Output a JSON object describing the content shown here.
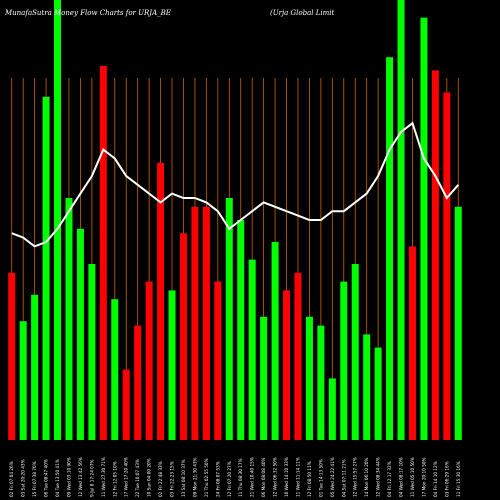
{
  "chart_data": {
    "type": "bar",
    "title_left": "MunafaSutra  Money Flow  Charts for URJA_BE",
    "title_right": "(Urja  Global Limit",
    "xlabel": "",
    "ylabel": "",
    "grid": true,
    "colors": {
      "background": "#000000",
      "grid": "#cc6600",
      "up": "#00ff00",
      "down": "#ff0000",
      "line": "#ffffff"
    },
    "categories": [
      "02 Fri 07:04 26%",
      "03 Sat 20:20 43%",
      "15 Fri 07:38 70%",
      "06 Tue 08:47 40%",
      "04 Tue 13:50 41%",
      "09 Wed 03:10 90%",
      "12 Wed 13:42 56%",
      "9-Jul 8 17:24 07%",
      "11 Wed 27:30 71%",
      "12 Fri 12:05 10%",
      "17 Wed 17:20 40%",
      "22 Tue 10:07 43%",
      "10 Sun 04:00 20%",
      "02 Fri 22:48 33%",
      "03 Fri 22:23 15%",
      "13 Sat 08:10 37%",
      "09 Mon 21:30 43%",
      "21 Thu 02:55 50%",
      "24 Fri 08:07 53%",
      "12 Fri 07:20 27%",
      "11 Thu 08:30 17%",
      "21 Wed 10:40 15%",
      "06 Mon 08:08 40%",
      "12 Wed 06:32 50%",
      "10 Wed 14:10 33%",
      "11 Wed 11:14 11%",
      "12 Fri 08:50 11%",
      "01 Tue 14:13 50%",
      "05 Wed 24:22 41%",
      "04 Sat 07:11 21%",
      "12 Wed 15:57 27%",
      "14 Mon 06:10 20%",
      "12 Wed 08:34 44%",
      "04 Fri 12:17 32%",
      "04 Wed 08:17 10%",
      "11 Wed 05:10 50%",
      "17 Mon 20:10 50%",
      "04 Fri 14:10 12%",
      "03 Fri 06:29 16%",
      "11 Fri 15:30 16%"
    ],
    "values": [
      38,
      27,
      33,
      78,
      100,
      55,
      48,
      40,
      85,
      32,
      16,
      26,
      36,
      63,
      34,
      47,
      53,
      53,
      36,
      55,
      50,
      41,
      28,
      45,
      34,
      38,
      28,
      26,
      14,
      36,
      40,
      24,
      21,
      87,
      100,
      44,
      96,
      84,
      79,
      53
    ],
    "directions": [
      "down",
      "up",
      "up",
      "up",
      "up",
      "up",
      "up",
      "up",
      "down",
      "up",
      "down",
      "down",
      "down",
      "down",
      "up",
      "down",
      "down",
      "down",
      "down",
      "up",
      "up",
      "up",
      "up",
      "up",
      "down",
      "down",
      "up",
      "up",
      "up",
      "up",
      "up",
      "up",
      "up",
      "up",
      "up",
      "down",
      "up",
      "down",
      "down",
      "up"
    ],
    "line": [
      47,
      46,
      44,
      45,
      48,
      52,
      56,
      60,
      66,
      64,
      60,
      58,
      56,
      54,
      56,
      55,
      55,
      54,
      52,
      48,
      50,
      52,
      54,
      53,
      52,
      51,
      50,
      50,
      52,
      52,
      54,
      56,
      60,
      66,
      70,
      72,
      64,
      60,
      55,
      58
    ]
  }
}
